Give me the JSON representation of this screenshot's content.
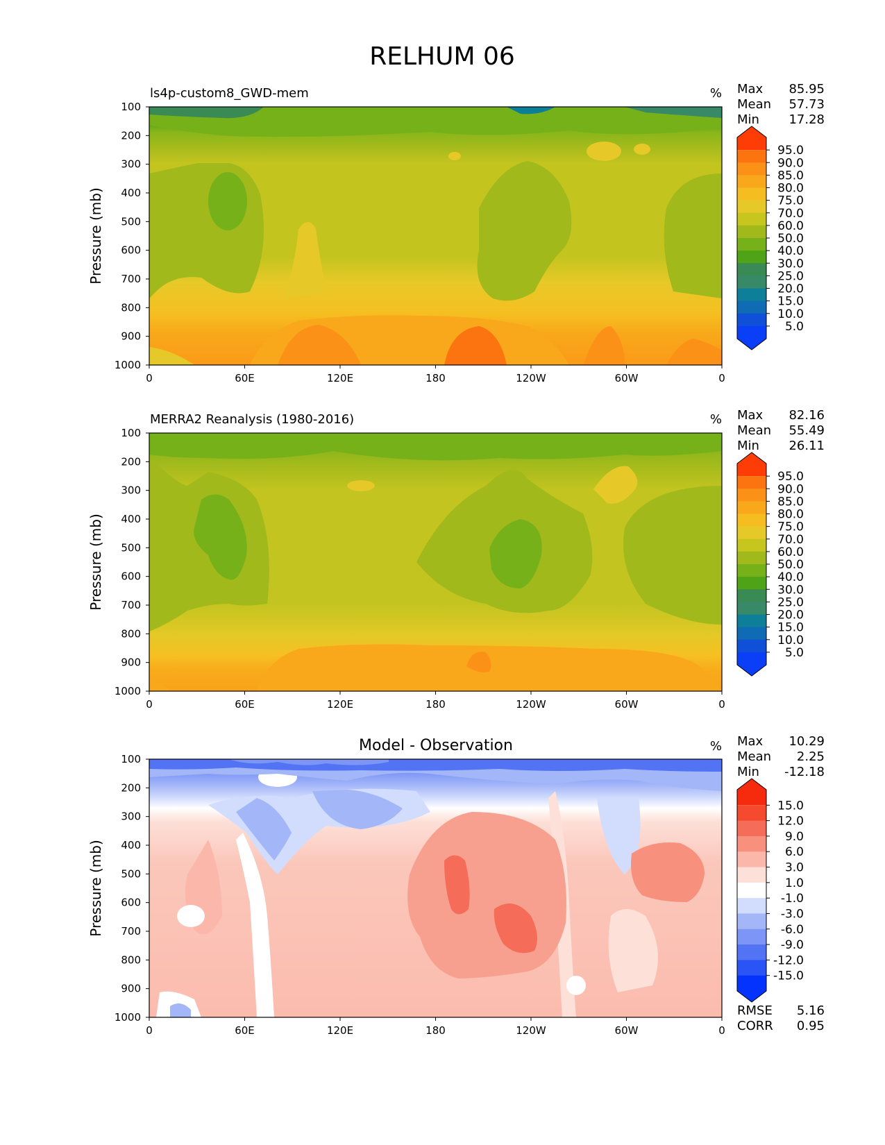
{
  "figure": {
    "title": "RELHUM 06"
  },
  "axis_common": {
    "ylabel": "Pressure (mb)",
    "yticks": [
      "100",
      "200",
      "300",
      "400",
      "500",
      "600",
      "700",
      "800",
      "900",
      "1000"
    ],
    "xticks": [
      "0",
      "60E",
      "120E",
      "180",
      "120W",
      "60W",
      "0"
    ],
    "unit": "%"
  },
  "colors": {
    "abs_scale": [
      "#0b3ff7",
      "#1050d8",
      "#0f6bb4",
      "#0e7f98",
      "#378967",
      "#3a8a55",
      "#4fa317",
      "#77b119",
      "#a1b91b",
      "#c6c61f",
      "#e6c929",
      "#f6bd21",
      "#f8a81a",
      "#fb9217",
      "#fc7410",
      "#fe3d06"
    ],
    "diff_scale": [
      "#0433fd",
      "#2b54f7",
      "#5274f4",
      "#7c95f6",
      "#a3b6f8",
      "#d2dcfd",
      "#ffffff",
      "#fde0d8",
      "#fbb8aa",
      "#f8907e",
      "#f56c58",
      "#f64a2e",
      "#f62a0d"
    ]
  },
  "chart_data": [
    {
      "type": "contour",
      "panel": "model",
      "title": "ls4p-custom8_GWD-mem",
      "unit": "%",
      "stats": {
        "max_label": "Max",
        "max": "85.95",
        "mean_label": "Mean",
        "mean": "57.73",
        "min_label": "Min",
        "min": "17.28"
      },
      "ylabel": "Pressure (mb)",
      "xlabel": "",
      "colorbar_levels": [
        "95.0",
        "90.0",
        "85.0",
        "80.0",
        "75.0",
        "70.0",
        "60.0",
        "50.0",
        "40.0",
        "30.0",
        "25.0",
        "20.0",
        "15.0",
        "10.0",
        "5.0"
      ]
    },
    {
      "type": "contour",
      "panel": "observation",
      "title": "MERRA2 Reanalysis (1980-2016)",
      "unit": "%",
      "stats": {
        "max_label": "Max",
        "max": "82.16",
        "mean_label": "Mean",
        "mean": "55.49",
        "min_label": "Min",
        "min": "26.11"
      },
      "ylabel": "Pressure (mb)",
      "xlabel": "",
      "colorbar_levels": [
        "95.0",
        "90.0",
        "85.0",
        "80.0",
        "75.0",
        "70.0",
        "60.0",
        "50.0",
        "40.0",
        "30.0",
        "25.0",
        "20.0",
        "15.0",
        "10.0",
        "5.0"
      ]
    },
    {
      "type": "contour",
      "panel": "difference",
      "title": "Model - Observation",
      "unit": "%",
      "stats": {
        "max_label": "Max",
        "max": "10.29",
        "mean_label": "Mean",
        "mean": "2.25",
        "min_label": "Min",
        "min": "-12.18"
      },
      "extra_stats": {
        "rmse_label": "RMSE",
        "rmse": "5.16",
        "corr_label": "CORR",
        "corr": "0.95"
      },
      "ylabel": "Pressure (mb)",
      "xlabel": "",
      "colorbar_levels": [
        "15.0",
        "12.0",
        "9.0",
        "6.0",
        "3.0",
        "1.0",
        "-1.0",
        "-3.0",
        "-6.0",
        "-9.0",
        "-12.0",
        "-15.0"
      ]
    }
  ]
}
